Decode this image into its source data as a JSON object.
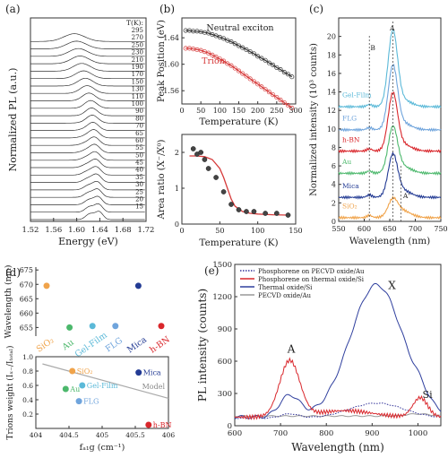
{
  "chart_data": [
    {
      "panel": "(a)",
      "type": "line",
      "xlabel": "Energy (eV)",
      "ylabel": "Normalized PL (a.u.)",
      "xlim": [
        1.52,
        1.72
      ],
      "xticks": [
        "1.52",
        "1.56",
        "1.60",
        "1.64",
        "1.68",
        "1.72"
      ],
      "legend_title": "T(K):",
      "temperatures": [
        "295",
        "270",
        "250",
        "230",
        "210",
        "190",
        "170",
        "150",
        "130",
        "110",
        "100",
        "90",
        "80",
        "70",
        "65",
        "60",
        "55",
        "50",
        "45",
        "40",
        "35",
        "30",
        "25",
        "20",
        "15"
      ],
      "temperature_values": [
        295,
        270,
        250,
        230,
        210,
        190,
        170,
        150,
        130,
        110,
        100,
        90,
        80,
        70,
        65,
        60,
        55,
        50,
        45,
        40,
        35,
        30,
        25,
        20,
        15
      ]
    },
    {
      "panel": "(b)",
      "type": "scatter",
      "xlabel": "Temperature (K)",
      "ylabel": "Peak Position (eV)",
      "xlim": [
        0,
        300
      ],
      "ylim": [
        1.54,
        1.67
      ],
      "xticks": [
        "0",
        "50",
        "100",
        "150",
        "200",
        "250",
        "300"
      ],
      "yticks": [
        "1.56",
        "1.60",
        "1.64"
      ],
      "series": [
        {
          "name": "Neutral exciton",
          "color": "#333333",
          "x": [
            10,
            20,
            30,
            40,
            50,
            60,
            70,
            80,
            90,
            100,
            110,
            120,
            130,
            140,
            150,
            160,
            170,
            180,
            190,
            200,
            210,
            220,
            230,
            240,
            250,
            260,
            270,
            280,
            290
          ],
          "y": [
            1.651,
            1.651,
            1.65,
            1.65,
            1.649,
            1.648,
            1.647,
            1.645,
            1.643,
            1.641,
            1.639,
            1.636,
            1.634,
            1.631,
            1.628,
            1.625,
            1.622,
            1.619,
            1.616,
            1.612,
            1.609,
            1.606,
            1.602,
            1.599,
            1.595,
            1.592,
            1.588,
            1.585,
            1.581
          ]
        },
        {
          "name": "Trion",
          "color": "#d63a3a",
          "x": [
            10,
            20,
            30,
            40,
            50,
            60,
            70,
            80,
            90,
            100,
            110,
            120,
            130,
            140,
            150,
            160,
            170,
            180,
            190,
            200,
            210,
            220,
            230,
            240,
            250,
            260,
            270,
            280,
            290
          ],
          "y": [
            1.624,
            1.624,
            1.623,
            1.622,
            1.621,
            1.619,
            1.617,
            1.614,
            1.611,
            1.608,
            1.605,
            1.601,
            1.598,
            1.594,
            1.59,
            1.586,
            1.582,
            1.578,
            1.574,
            1.57,
            1.566,
            1.562,
            1.558,
            1.554,
            1.55,
            1.546,
            1.542,
            1.538,
            1.534
          ]
        }
      ]
    },
    {
      "panel": "(b-lower)",
      "type": "scatter",
      "xlabel": "Temperature (K)",
      "ylabel": "Area ratio (X⁻/X⁰)",
      "xlim": [
        0,
        150
      ],
      "ylim": [
        0,
        2.5
      ],
      "xticks": [
        "0",
        "50",
        "100",
        "150"
      ],
      "yticks": [
        "0",
        "1",
        "2"
      ],
      "points": {
        "x": [
          15,
          20,
          25,
          30,
          35,
          45,
          55,
          65,
          75,
          85,
          95,
          110,
          125,
          140
        ],
        "y": [
          2.1,
          1.95,
          2.0,
          1.8,
          1.55,
          1.3,
          0.9,
          0.55,
          0.4,
          0.35,
          0.35,
          0.3,
          0.3,
          0.25
        ]
      },
      "fit": {
        "x": [
          10,
          20,
          30,
          40,
          50,
          55,
          60,
          65,
          70,
          80,
          90,
          100,
          120,
          140
        ],
        "y": [
          1.9,
          1.9,
          1.88,
          1.8,
          1.55,
          1.3,
          1.0,
          0.7,
          0.5,
          0.35,
          0.3,
          0.28,
          0.26,
          0.25
        ]
      }
    },
    {
      "panel": "(c)",
      "type": "line",
      "xlabel": "Wavelength (nm)",
      "ylabel": "Normalized intensity (10³ counts)",
      "xlim": [
        550,
        750
      ],
      "ylim": [
        0,
        22
      ],
      "xticks": [
        "550",
        "600",
        "650",
        "700",
        "750"
      ],
      "yticks": [
        "0",
        "2",
        "4",
        "6",
        "8",
        "10",
        "12",
        "14",
        "16",
        "18",
        "20"
      ],
      "annotations": [
        "A",
        "B",
        "A'"
      ],
      "series": [
        {
          "name": "Gel-Film",
          "color": "#5bb9d8",
          "offset": 12,
          "peak": 7.8
        },
        {
          "name": "FLG",
          "color": "#6fa4dc",
          "offset": 9.5,
          "peak": 6.5
        },
        {
          "name": "h-BN",
          "color": "#d9262b",
          "offset": 7.2,
          "peak": 5.8
        },
        {
          "name": "Au",
          "color": "#4cb86c",
          "offset": 4.8,
          "peak": 4.6
        },
        {
          "name": "Mica",
          "color": "#233b94",
          "offset": 2.2,
          "peak": 4.2
        },
        {
          "name": "SiO₂",
          "color": "#f0a34a",
          "offset": 0,
          "peak": 1.6
        }
      ]
    },
    {
      "panel": "(d)",
      "type": "scatter",
      "ylabel": "Wavelength (nm)",
      "yticks": [
        "655",
        "660",
        "665",
        "670",
        "675"
      ],
      "ylim": [
        652,
        676
      ],
      "categories": [
        "SiO₂",
        "Au",
        "Gel-Film",
        "FLG",
        "Mica",
        "h-BN"
      ],
      "colors": [
        "#f0a34a",
        "#4cb86c",
        "#5bb9d8",
        "#6fa4dc",
        "#233b94",
        "#d9262b"
      ],
      "values": [
        669.5,
        655,
        655.5,
        655.5,
        669.5,
        655.5
      ]
    },
    {
      "panel": "(d-lower)",
      "type": "scatter",
      "xlabel": "fₐ₁g (cm⁻¹)",
      "ylabel": "Trions weight (Iₓ₋/Iₜₒₜₐₗ)",
      "xlim": [
        404,
        406
      ],
      "ylim": [
        0,
        1
      ],
      "xticks": [
        "404",
        "404.5",
        "405",
        "405.5",
        "406"
      ],
      "yticks": [
        "0.2",
        "0.4",
        "0.6",
        "0.8",
        "1.0"
      ],
      "model_label": "Model",
      "points": [
        {
          "name": "SiO₂",
          "color": "#f0a34a",
          "x": 404.55,
          "y": 0.8
        },
        {
          "name": "Au",
          "color": "#4cb86c",
          "x": 404.45,
          "y": 0.55
        },
        {
          "name": "Gel-Film",
          "color": "#5bb9d8",
          "x": 404.7,
          "y": 0.6
        },
        {
          "name": "FLG",
          "color": "#6fa4dc",
          "x": 404.65,
          "y": 0.38
        },
        {
          "name": "Mica",
          "color": "#233b94",
          "x": 405.55,
          "y": 0.78
        },
        {
          "name": "h-BN",
          "color": "#d9262b",
          "x": 405.7,
          "y": 0.05
        }
      ],
      "model": {
        "x": [
          404.1,
          406
        ],
        "y": [
          0.9,
          0.42
        ]
      }
    },
    {
      "panel": "(e)",
      "type": "line",
      "xlabel": "Wavelength (nm)",
      "ylabel": "PL intensity (counts)",
      "xlim": [
        600,
        1050
      ],
      "ylim": [
        0,
        1500
      ],
      "xticks": [
        "600",
        "700",
        "800",
        "900",
        "1000"
      ],
      "yticks": [
        "0",
        "300",
        "600",
        "900",
        "1200",
        "1500"
      ],
      "annotations": [
        "A",
        "X",
        "Si"
      ],
      "legend": [
        {
          "name": "Phosphorene on PECVD oxide/Au",
          "color": "#333399",
          "style": "dotted"
        },
        {
          "name": "Phosphorene on thermal oxide/Si",
          "color": "#d9262b",
          "style": "solid"
        },
        {
          "name": "Thermal oxide/Si",
          "color": "#2f3f9e",
          "style": "solid"
        },
        {
          "name": "PECVD oxide/Au",
          "color": "#999999",
          "style": "solid"
        }
      ]
    }
  ]
}
